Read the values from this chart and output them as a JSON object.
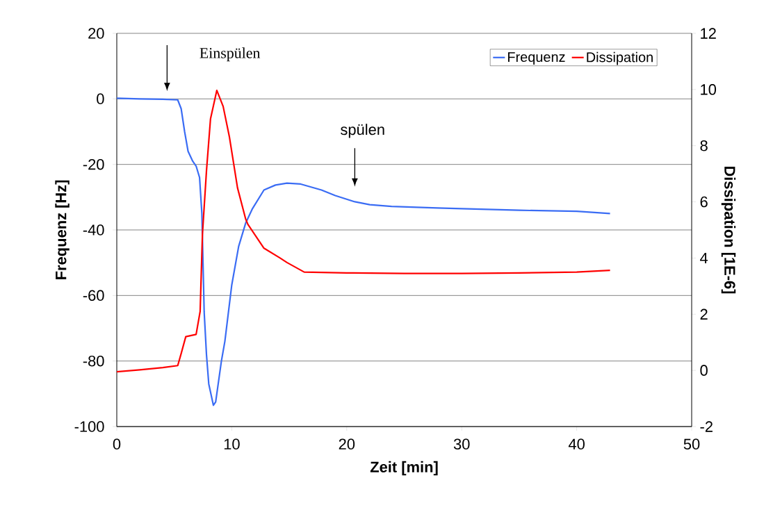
{
  "chart_data": {
    "type": "line",
    "xlabel": "Zeit [min]",
    "ylabel": "Frequenz [Hz]",
    "y2label": "Dissipation [1E-6]",
    "xlim": [
      0,
      50
    ],
    "xticks": [
      0,
      10,
      20,
      30,
      40,
      50
    ],
    "ylim": [
      -100,
      20
    ],
    "yticks": [
      -100,
      -80,
      -60,
      -40,
      -20,
      0,
      20
    ],
    "y2lim": [
      -2,
      12
    ],
    "y2ticks": [
      -2,
      0,
      2,
      4,
      6,
      8,
      10,
      12
    ],
    "grid": "y",
    "legend": "top right",
    "marker": "none",
    "line_style": "solid",
    "annotations": [
      "Einspülen",
      "spülen"
    ],
    "series": [
      {
        "name": "Frequenz",
        "color": "#3a6cf4",
        "x": [
          0,
          2,
          4,
          5.3,
          5.6,
          5.9,
          6.2,
          6.6,
          6.9,
          7.2,
          7.4,
          7.5,
          7.6,
          7.8,
          8.0,
          8.4,
          8.6,
          9.1,
          9.4,
          10.0,
          10.6,
          11.2,
          11.8,
          12.8,
          13.8,
          14.8,
          16.0,
          17.8,
          19.0,
          20.7,
          22.0,
          23.9,
          26.1,
          27.9,
          30,
          35,
          40,
          42.9
        ],
        "values": [
          0.2,
          0,
          -0.1,
          -0.3,
          -3,
          -10,
          -16,
          -19,
          -20.5,
          -24,
          -35,
          -50,
          -65,
          -78,
          -87,
          -93.5,
          -92.5,
          -80,
          -74,
          -56.8,
          -45,
          -38,
          -33.5,
          -27.8,
          -26.3,
          -25.7,
          -26,
          -27.8,
          -29.5,
          -31.4,
          -32.3,
          -32.8,
          -33.1,
          -33.3,
          -33.5,
          -34,
          -34.3,
          -35
        ]
      },
      {
        "name": "Dissipation",
        "color": "#ff0000",
        "axis": "y2",
        "x": [
          0,
          2,
          4,
          5.3,
          5.6,
          6.0,
          6.9,
          7.25,
          7.45,
          7.8,
          8.15,
          8.7,
          9.25,
          9.8,
          10.5,
          11.2,
          11.4,
          12.8,
          14.2,
          14.8,
          16.3,
          20,
          25,
          30,
          35,
          40,
          42.9
        ],
        "values": [
          -0.05,
          0.02,
          0.1,
          0.17,
          0.6,
          1.2,
          1.28,
          2.1,
          4.85,
          7.1,
          8.95,
          9.97,
          9.4,
          8.3,
          6.5,
          5.4,
          5.2,
          4.35,
          4.0,
          3.84,
          3.5,
          3.47,
          3.45,
          3.45,
          3.47,
          3.5,
          3.56
        ]
      }
    ]
  }
}
